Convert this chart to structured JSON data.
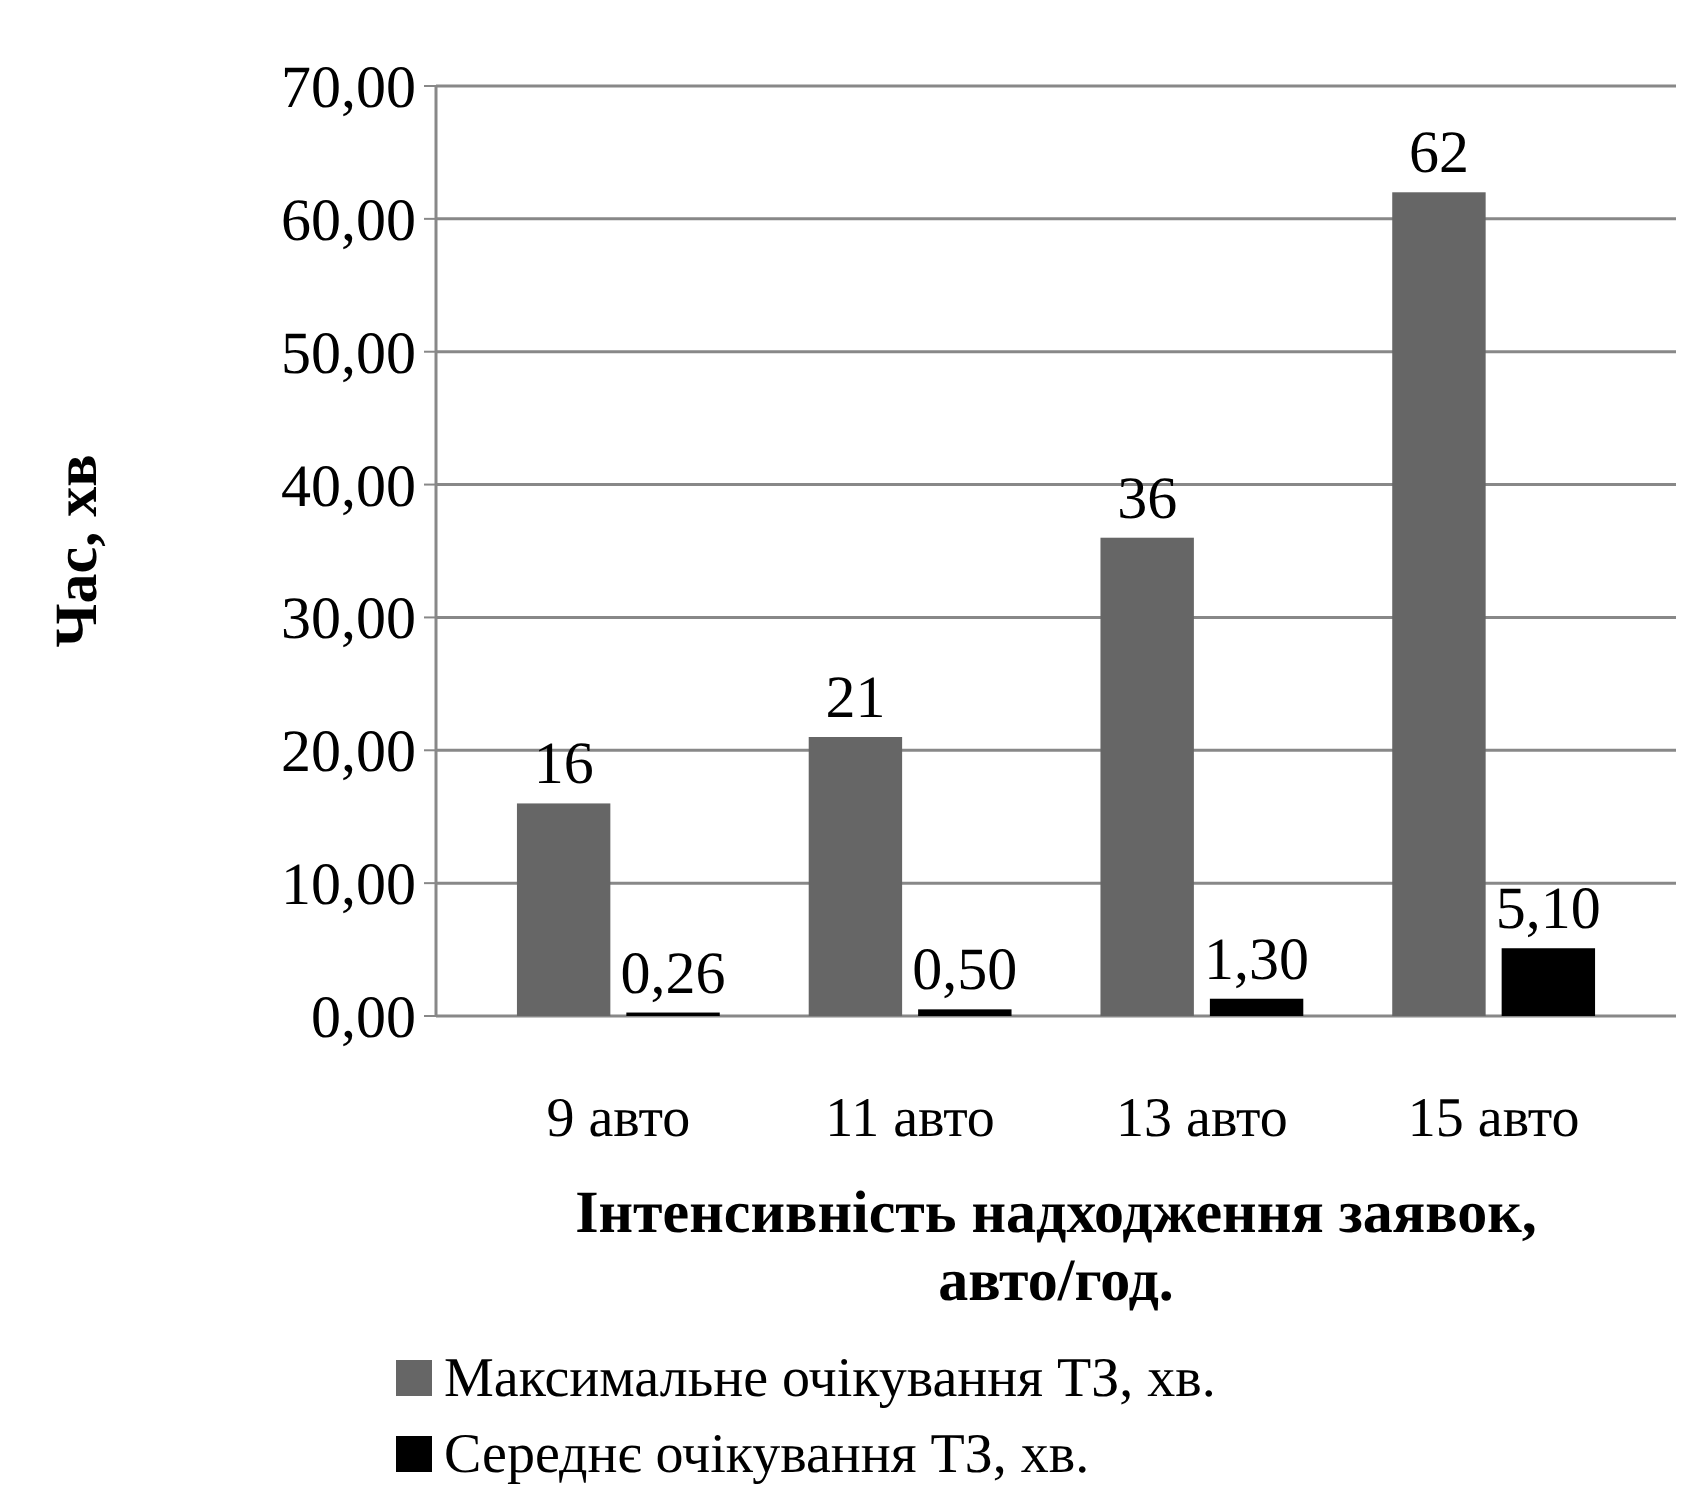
{
  "chart_data": {
    "type": "bar",
    "xlabel": "Інтенсивність надходження заявок, авто/год.",
    "ylabel": "Час, хв",
    "categories": [
      "9 авто",
      "11 авто",
      "13 авто",
      "15 авто"
    ],
    "series": [
      {
        "name": "Максимальне очікування ТЗ, хв.",
        "color": "#666666",
        "values": [
          16,
          21,
          36,
          62
        ],
        "value_labels": [
          "16",
          "21",
          "36",
          "62"
        ]
      },
      {
        "name": "Середнє очікування ТЗ, хв.",
        "color": "#000000",
        "values": [
          0.26,
          0.5,
          1.3,
          5.1
        ],
        "value_labels": [
          "0,26",
          "0,50",
          "1,30",
          "5,10"
        ]
      }
    ],
    "ylim": [
      0,
      70
    ],
    "yticks": [
      {
        "value": 0,
        "label": "0,00"
      },
      {
        "value": 10,
        "label": "10,00"
      },
      {
        "value": 20,
        "label": "20,00"
      },
      {
        "value": 30,
        "label": "30,00"
      },
      {
        "value": 40,
        "label": "40,00"
      },
      {
        "value": 50,
        "label": "50,00"
      },
      {
        "value": 60,
        "label": "60,00"
      },
      {
        "value": 70,
        "label": "70,00"
      }
    ],
    "grid": "y",
    "legend": "bottom"
  }
}
